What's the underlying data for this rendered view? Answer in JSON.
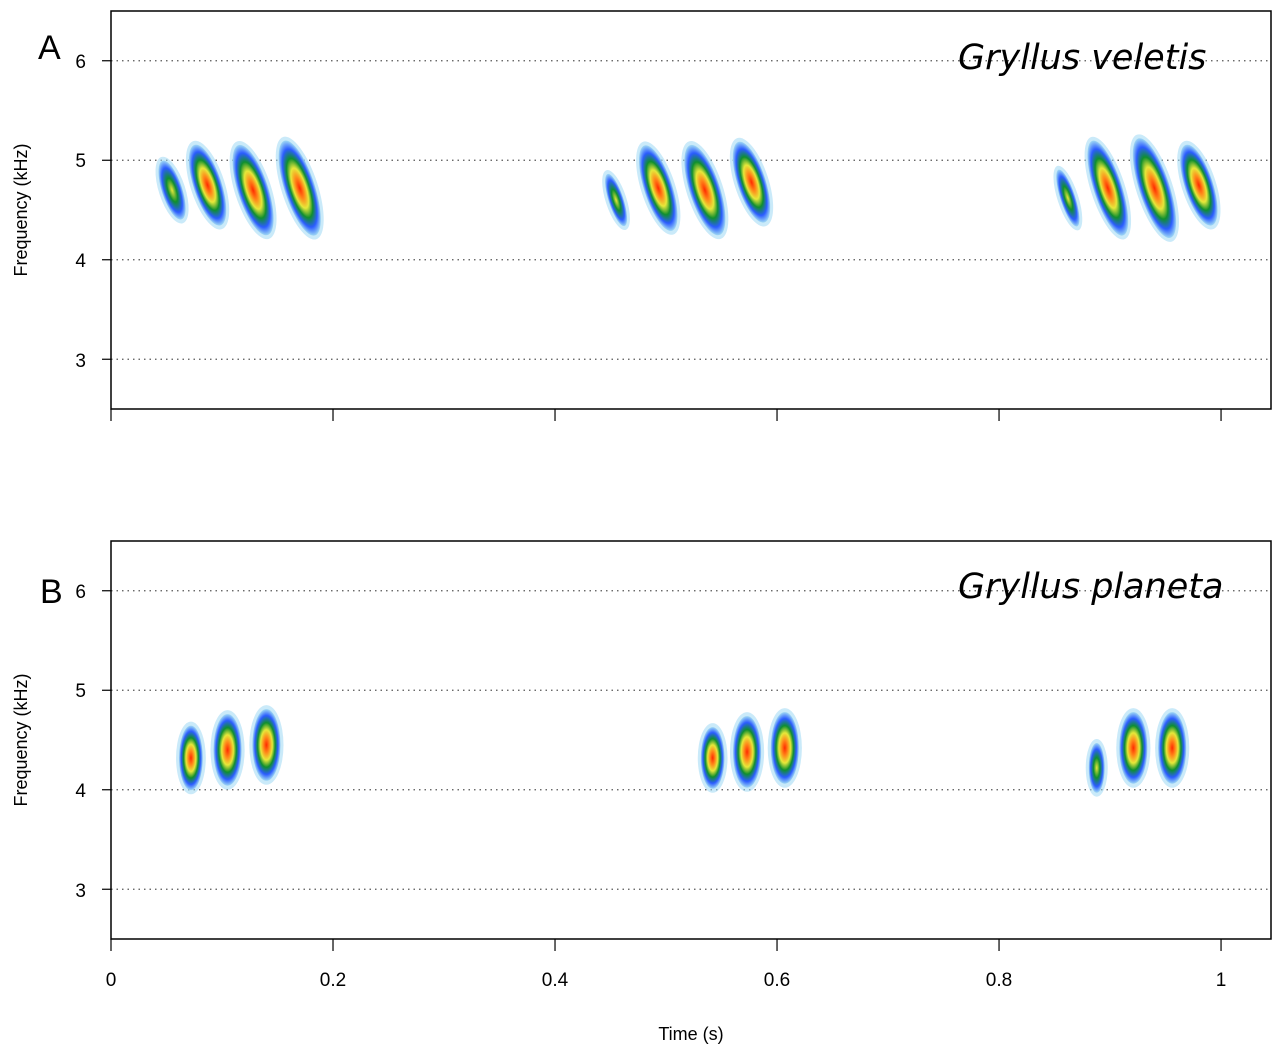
{
  "chart_data": [
    {
      "type": "heatmap",
      "subtype": "spectrogram",
      "panel_label": "A",
      "species": "Gryllus veletis",
      "ylabel": "Frequency (kHz)",
      "xlabel": "",
      "xlim": [
        0,
        1.045
      ],
      "ylim": [
        2.5,
        6.5
      ],
      "yticks": [
        "3",
        "4",
        "5",
        "6"
      ],
      "xticks": [
        0,
        0.2,
        0.4,
        0.6,
        0.8,
        1
      ],
      "xtick_labels_shown": false,
      "grid": "horizontal dotted at y ticks",
      "color_scale": [
        "#9fd8f4",
        "#2b5cff",
        "#0f8f2e",
        "#e6e83a",
        "#ff8a1a",
        "#ff2a00"
      ],
      "pulses": [
        {
          "t": 0.055,
          "f": 4.7,
          "dur": 0.013,
          "bw": 0.62,
          "level": 0.6
        },
        {
          "t": 0.087,
          "f": 4.75,
          "dur": 0.02,
          "bw": 0.85,
          "level": 0.85
        },
        {
          "t": 0.128,
          "f": 4.7,
          "dur": 0.022,
          "bw": 0.95,
          "level": 1.0
        },
        {
          "t": 0.17,
          "f": 4.72,
          "dur": 0.022,
          "bw": 1.0,
          "level": 0.9
        },
        {
          "t": 0.455,
          "f": 4.6,
          "dur": 0.008,
          "bw": 0.55,
          "level": 0.35
        },
        {
          "t": 0.493,
          "f": 4.72,
          "dur": 0.02,
          "bw": 0.9,
          "level": 0.85
        },
        {
          "t": 0.535,
          "f": 4.7,
          "dur": 0.022,
          "bw": 0.95,
          "level": 1.0
        },
        {
          "t": 0.577,
          "f": 4.78,
          "dur": 0.02,
          "bw": 0.85,
          "level": 0.85
        },
        {
          "t": 0.862,
          "f": 4.62,
          "dur": 0.008,
          "bw": 0.6,
          "level": 0.45
        },
        {
          "t": 0.898,
          "f": 4.72,
          "dur": 0.02,
          "bw": 1.0,
          "level": 0.9
        },
        {
          "t": 0.94,
          "f": 4.72,
          "dur": 0.022,
          "bw": 1.05,
          "level": 1.0
        },
        {
          "t": 0.98,
          "f": 4.75,
          "dur": 0.02,
          "bw": 0.85,
          "level": 0.9
        }
      ]
    },
    {
      "type": "heatmap",
      "subtype": "spectrogram",
      "panel_label": "B",
      "species": "Gryllus planeta",
      "ylabel": "Frequency (kHz)",
      "xlabel": "Time (s)",
      "xlim": [
        0,
        1.045
      ],
      "ylim": [
        2.5,
        6.5
      ],
      "yticks": [
        "3",
        "4",
        "5",
        "6"
      ],
      "xticks": [
        0,
        0.2,
        0.4,
        0.6,
        0.8,
        1
      ],
      "xtick_labels": [
        "0",
        "0.2",
        "0.4",
        "0.6",
        "0.8",
        "1"
      ],
      "xtick_labels_shown": true,
      "grid": "horizontal dotted at y ticks",
      "color_scale": [
        "#9fd8f4",
        "#2b5cff",
        "#0f8f2e",
        "#e6e83a",
        "#ff8a1a",
        "#ff2a00"
      ],
      "pulses": [
        {
          "t": 0.072,
          "f": 4.32,
          "dur": 0.016,
          "bw": 0.65,
          "level": 0.75
        },
        {
          "t": 0.105,
          "f": 4.4,
          "dur": 0.02,
          "bw": 0.72,
          "level": 1.0
        },
        {
          "t": 0.14,
          "f": 4.45,
          "dur": 0.02,
          "bw": 0.72,
          "level": 1.0
        },
        {
          "t": 0.542,
          "f": 4.32,
          "dur": 0.016,
          "bw": 0.62,
          "level": 0.75
        },
        {
          "t": 0.573,
          "f": 4.38,
          "dur": 0.02,
          "bw": 0.72,
          "level": 0.95
        },
        {
          "t": 0.607,
          "f": 4.42,
          "dur": 0.02,
          "bw": 0.72,
          "level": 1.0
        },
        {
          "t": 0.888,
          "f": 4.22,
          "dur": 0.009,
          "bw": 0.5,
          "level": 0.4
        },
        {
          "t": 0.921,
          "f": 4.42,
          "dur": 0.02,
          "bw": 0.72,
          "level": 1.0
        },
        {
          "t": 0.956,
          "f": 4.42,
          "dur": 0.02,
          "bw": 0.72,
          "level": 1.0
        }
      ]
    }
  ]
}
